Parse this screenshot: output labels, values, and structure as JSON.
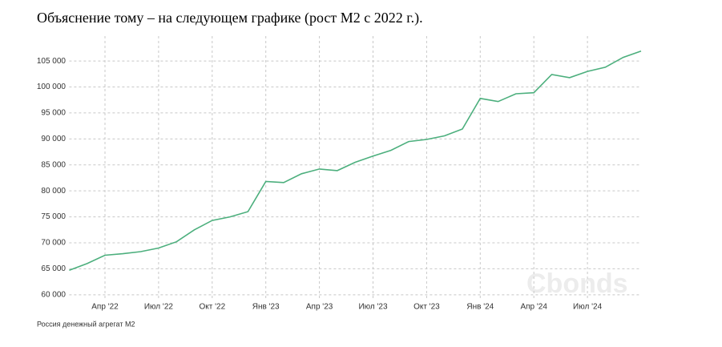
{
  "chart_data": {
    "type": "line",
    "title": "Объяснение тому – на следующем графике (рост М2 с 2022 г.).",
    "source": "Россия денежный агрегат М2",
    "watermark": "Cbonds",
    "categories": [
      null,
      null,
      "Апр '22",
      null,
      null,
      "Июл '22",
      null,
      null,
      "Окт '22",
      null,
      null,
      "Янв '23",
      null,
      null,
      "Апр '23",
      null,
      null,
      "Июл '23",
      null,
      null,
      "Окт '23",
      null,
      null,
      "Янв '24",
      null,
      null,
      "Апр '24",
      null,
      null,
      "Июл '24",
      null,
      null,
      null
    ],
    "series": [
      {
        "name": "М2",
        "color": "#4caf7d",
        "values": [
          64700,
          66000,
          67600,
          67900,
          68300,
          69000,
          70200,
          72500,
          74300,
          75000,
          76000,
          81800,
          81600,
          83300,
          84200,
          83900,
          85500,
          86700,
          87800,
          89500,
          89900,
          90600,
          91900,
          97800,
          97200,
          98700,
          98900,
          102400,
          101800,
          103000,
          103800,
          105700,
          106900
        ]
      }
    ],
    "ylim": [
      59200,
      109800
    ],
    "yticks": [
      {
        "value": 60000,
        "label": "60 000"
      },
      {
        "value": 65000,
        "label": "65 000"
      },
      {
        "value": 70000,
        "label": "70 000"
      },
      {
        "value": 75000,
        "label": "75 000"
      },
      {
        "value": 80000,
        "label": "80 000"
      },
      {
        "value": 85000,
        "label": "85 000"
      },
      {
        "value": 90000,
        "label": "90 000"
      },
      {
        "value": 95000,
        "label": "95 000"
      },
      {
        "value": 100000,
        "label": "100 000"
      },
      {
        "value": 105000,
        "label": "105 000"
      }
    ],
    "grid": true
  }
}
